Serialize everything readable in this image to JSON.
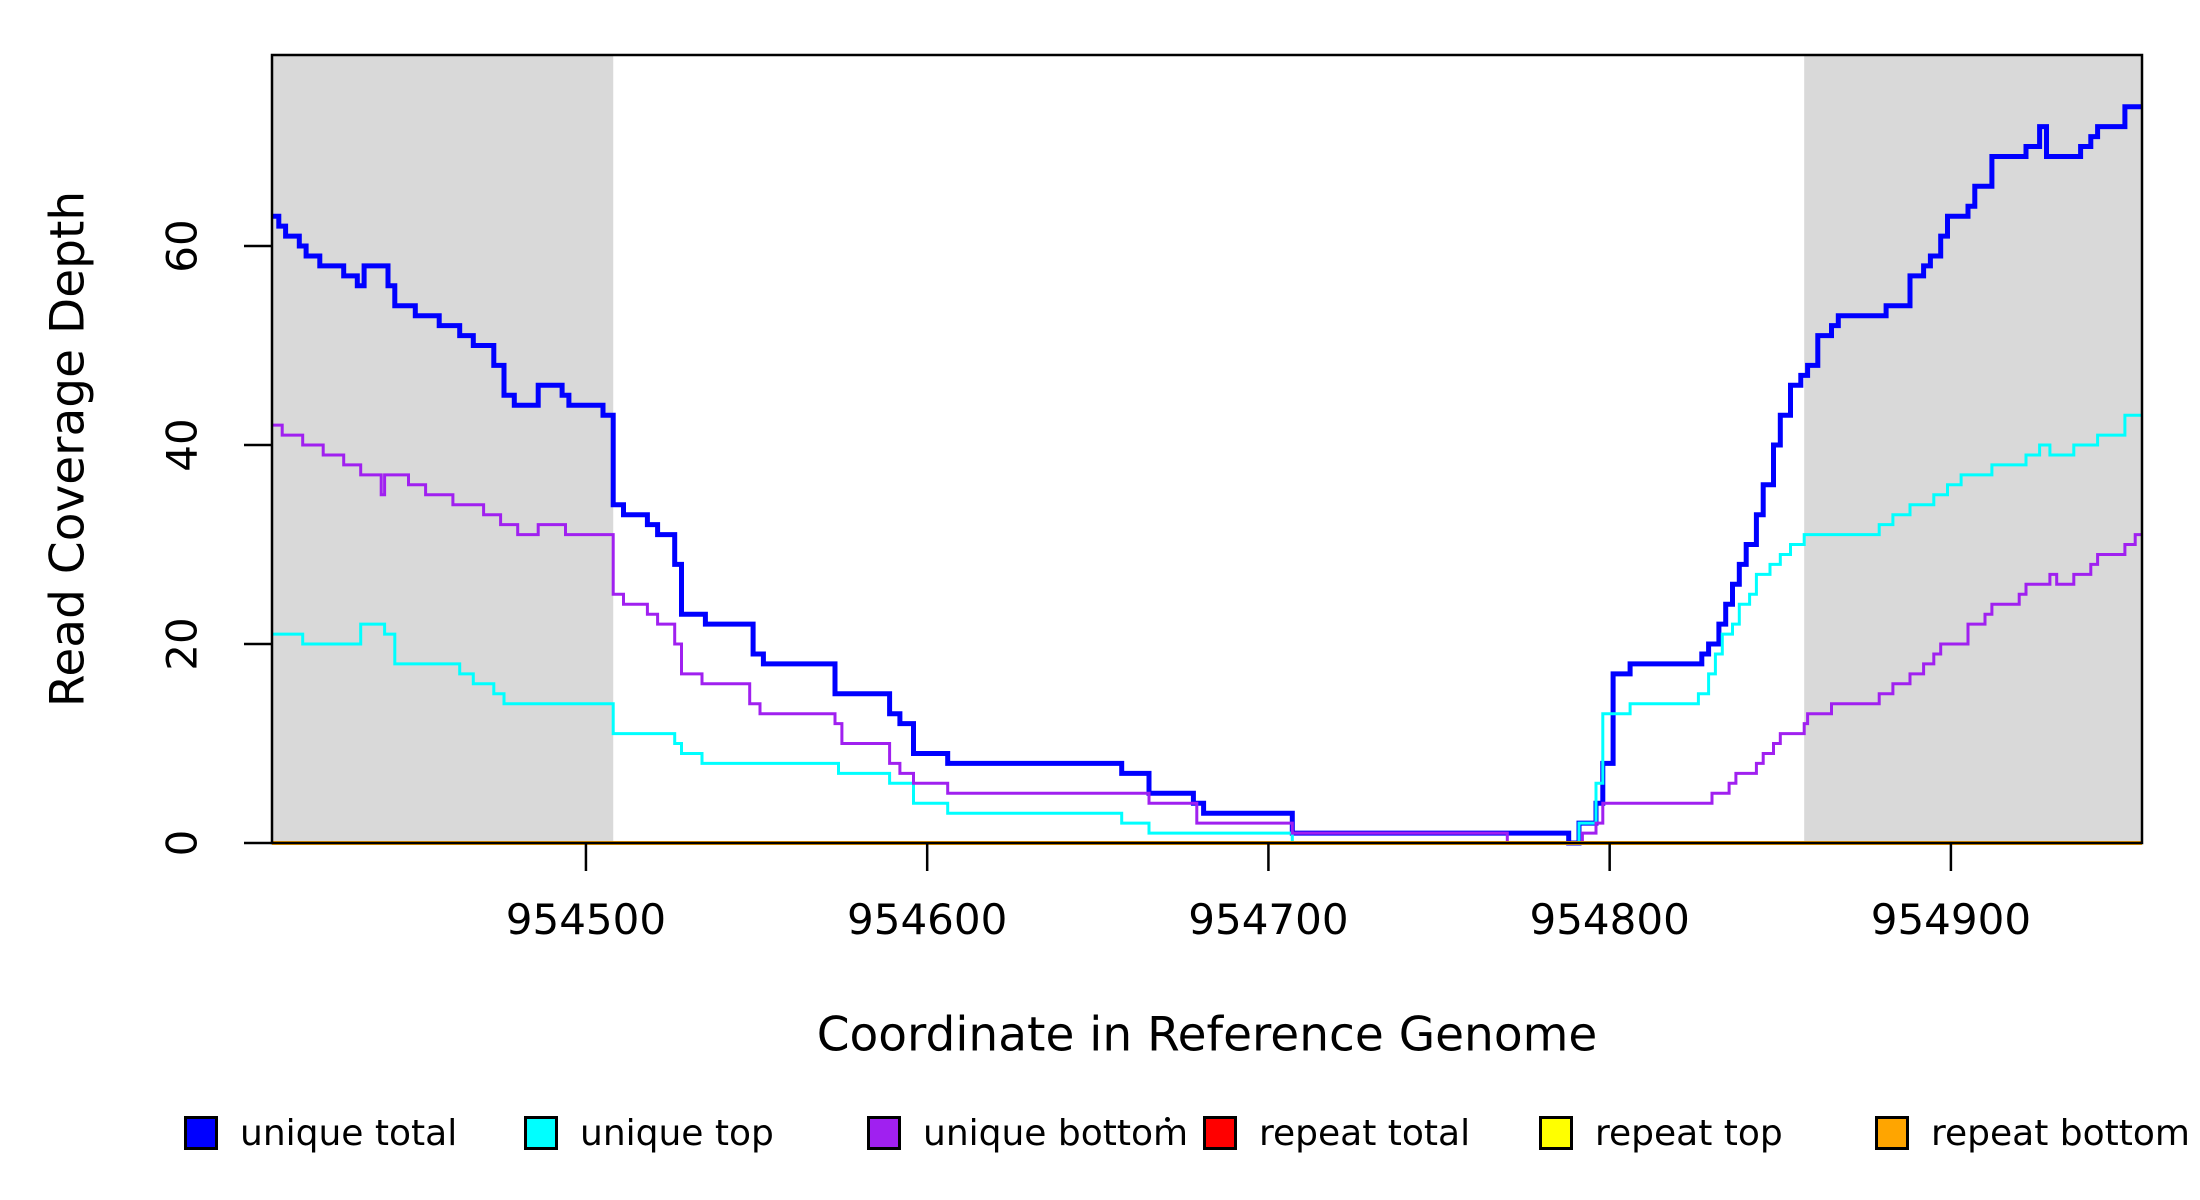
{
  "figure": {
    "y_axis_title": "Read Coverage Depth",
    "x_axis_title": "Coordinate in Reference Genome"
  },
  "chart_data": {
    "type": "line",
    "subtype": "step",
    "title": "",
    "xlabel": "Coordinate in Reference Genome",
    "ylabel": "Read Coverage Depth",
    "xlim": [
      954408,
      954956
    ],
    "ylim": [
      0,
      79.2
    ],
    "grid": false,
    "legend_position": "bottom",
    "x_ticks": [
      954500,
      954600,
      954700,
      954800,
      954900
    ],
    "y_ticks": [
      0,
      20,
      40,
      60
    ],
    "shaded_regions": [
      {
        "name": "left-flank-region",
        "x0": 954408,
        "x1": 954508,
        "color": "#D9D9D9"
      },
      {
        "name": "right-flank-region",
        "x0": 954857,
        "x1": 954956,
        "color": "#D9D9D9"
      }
    ],
    "series": [
      {
        "name": "unique total",
        "color": "#0000FF",
        "width": 5,
        "points": [
          [
            954408,
            63
          ],
          [
            954410,
            62
          ],
          [
            954412,
            61
          ],
          [
            954416,
            60
          ],
          [
            954418,
            59
          ],
          [
            954422,
            58
          ],
          [
            954429,
            57
          ],
          [
            954433,
            56
          ],
          [
            954435,
            58
          ],
          [
            954442,
            56
          ],
          [
            954444,
            54
          ],
          [
            954450,
            53
          ],
          [
            954457,
            52
          ],
          [
            954463,
            51
          ],
          [
            954467,
            50
          ],
          [
            954473,
            48
          ],
          [
            954476,
            45
          ],
          [
            954479,
            44
          ],
          [
            954486,
            46
          ],
          [
            954493,
            45
          ],
          [
            954495,
            44
          ],
          [
            954505,
            43
          ],
          [
            954508,
            34
          ],
          [
            954511,
            33
          ],
          [
            954518,
            32
          ],
          [
            954521,
            31
          ],
          [
            954526,
            28
          ],
          [
            954528,
            23
          ],
          [
            954535,
            22
          ],
          [
            954549,
            19
          ],
          [
            954552,
            18
          ],
          [
            954573,
            15
          ],
          [
            954589,
            13
          ],
          [
            954592,
            12
          ],
          [
            954596,
            9
          ],
          [
            954606,
            8
          ],
          [
            954657,
            7
          ],
          [
            954665,
            5
          ],
          [
            954678,
            4
          ],
          [
            954681,
            3
          ],
          [
            954707,
            1
          ],
          [
            954788,
            0
          ],
          [
            954791,
            2
          ],
          [
            954796,
            4
          ],
          [
            954798,
            8
          ],
          [
            954801,
            17
          ],
          [
            954806,
            18
          ],
          [
            954827,
            19
          ],
          [
            954829,
            20
          ],
          [
            954832,
            22
          ],
          [
            954834,
            24
          ],
          [
            954836,
            26
          ],
          [
            954838,
            28
          ],
          [
            954840,
            30
          ],
          [
            954843,
            33
          ],
          [
            954845,
            36
          ],
          [
            954848,
            40
          ],
          [
            954850,
            43
          ],
          [
            954853,
            46
          ],
          [
            954856,
            47
          ],
          [
            954858,
            48
          ],
          [
            954861,
            51
          ],
          [
            954865,
            52
          ],
          [
            954867,
            53
          ],
          [
            954881,
            54
          ],
          [
            954888,
            57
          ],
          [
            954892,
            58
          ],
          [
            954894,
            59
          ],
          [
            954897,
            61
          ],
          [
            954899,
            63
          ],
          [
            954905,
            64
          ],
          [
            954907,
            66
          ],
          [
            954912,
            69
          ],
          [
            954922,
            70
          ],
          [
            954926,
            72
          ],
          [
            954928,
            69
          ],
          [
            954938,
            70
          ],
          [
            954941,
            71
          ],
          [
            954943,
            72
          ],
          [
            954951,
            74
          ]
        ]
      },
      {
        "name": "unique top",
        "color": "#00FFFF",
        "width": 3,
        "points": [
          [
            954408,
            21
          ],
          [
            954417,
            20
          ],
          [
            954434,
            22
          ],
          [
            954441,
            21
          ],
          [
            954444,
            18
          ],
          [
            954463,
            17
          ],
          [
            954467,
            16
          ],
          [
            954473,
            15
          ],
          [
            954476,
            14
          ],
          [
            954508,
            11
          ],
          [
            954526,
            10
          ],
          [
            954528,
            9
          ],
          [
            954534,
            8
          ],
          [
            954574,
            7
          ],
          [
            954589,
            6
          ],
          [
            954596,
            4
          ],
          [
            954606,
            3
          ],
          [
            954657,
            2
          ],
          [
            954665,
            1
          ],
          [
            954707,
            0
          ],
          [
            954791,
            2
          ],
          [
            954796,
            6
          ],
          [
            954798,
            13
          ],
          [
            954806,
            14
          ],
          [
            954826,
            15
          ],
          [
            954829,
            17
          ],
          [
            954831,
            19
          ],
          [
            954833,
            21
          ],
          [
            954836,
            22
          ],
          [
            954838,
            24
          ],
          [
            954841,
            25
          ],
          [
            954843,
            27
          ],
          [
            954847,
            28
          ],
          [
            954850,
            29
          ],
          [
            954853,
            30
          ],
          [
            954857,
            31
          ],
          [
            954879,
            32
          ],
          [
            954883,
            33
          ],
          [
            954888,
            34
          ],
          [
            954895,
            35
          ],
          [
            954899,
            36
          ],
          [
            954903,
            37
          ],
          [
            954912,
            38
          ],
          [
            954922,
            39
          ],
          [
            954926,
            40
          ],
          [
            954929,
            39
          ],
          [
            954936,
            40
          ],
          [
            954943,
            41
          ],
          [
            954951,
            43
          ]
        ]
      },
      {
        "name": "unique bottom",
        "color": "#A020F0",
        "width": 3,
        "points": [
          [
            954408,
            42
          ],
          [
            954411,
            41
          ],
          [
            954417,
            40
          ],
          [
            954423,
            39
          ],
          [
            954429,
            38
          ],
          [
            954434,
            37
          ],
          [
            954440,
            35
          ],
          [
            954441,
            37
          ],
          [
            954448,
            36
          ],
          [
            954453,
            35
          ],
          [
            954461,
            34
          ],
          [
            954470,
            33
          ],
          [
            954475,
            32
          ],
          [
            954480,
            31
          ],
          [
            954486,
            32
          ],
          [
            954494,
            31
          ],
          [
            954508,
            25
          ],
          [
            954511,
            24
          ],
          [
            954518,
            23
          ],
          [
            954521,
            22
          ],
          [
            954526,
            20
          ],
          [
            954528,
            17
          ],
          [
            954534,
            16
          ],
          [
            954548,
            14
          ],
          [
            954551,
            13
          ],
          [
            954573,
            12
          ],
          [
            954575,
            10
          ],
          [
            954589,
            8
          ],
          [
            954592,
            7
          ],
          [
            954596,
            6
          ],
          [
            954606,
            5
          ],
          [
            954665,
            4
          ],
          [
            954679,
            2
          ],
          [
            954707,
            1
          ],
          [
            954770,
            0
          ],
          [
            954792,
            1
          ],
          [
            954796,
            2
          ],
          [
            954798,
            4
          ],
          [
            954830,
            5
          ],
          [
            954835,
            6
          ],
          [
            954837,
            7
          ],
          [
            954843,
            8
          ],
          [
            954845,
            9
          ],
          [
            954848,
            10
          ],
          [
            954850,
            11
          ],
          [
            954857,
            12
          ],
          [
            954858,
            13
          ],
          [
            954865,
            14
          ],
          [
            954879,
            15
          ],
          [
            954883,
            16
          ],
          [
            954888,
            17
          ],
          [
            954892,
            18
          ],
          [
            954895,
            19
          ],
          [
            954897,
            20
          ],
          [
            954905,
            22
          ],
          [
            954910,
            23
          ],
          [
            954912,
            24
          ],
          [
            954920,
            25
          ],
          [
            954922,
            26
          ],
          [
            954929,
            27
          ],
          [
            954931,
            26
          ],
          [
            954936,
            27
          ],
          [
            954941,
            28
          ],
          [
            954943,
            29
          ],
          [
            954951,
            30
          ],
          [
            954954,
            31
          ]
        ]
      },
      {
        "name": "repeat total",
        "color": "#FF0000",
        "width": 3,
        "points": [
          [
            954408,
            0
          ]
        ]
      },
      {
        "name": "repeat top",
        "color": "#FFFF00",
        "width": 3,
        "points": [
          [
            954408,
            0
          ]
        ]
      },
      {
        "name": "repeat bottom",
        "color": "#FFA500",
        "width": 4,
        "points": [
          [
            954408,
            0
          ]
        ]
      }
    ],
    "legend": [
      {
        "label": "unique total",
        "color": "#0000FF"
      },
      {
        "label": "unique top",
        "color": "#00FFFF"
      },
      {
        "label": "unique bottom",
        "color": "#A020F0"
      },
      {
        "label": "repeat total",
        "color": "#FF0000"
      },
      {
        "label": "repeat top",
        "color": "#FFFF00"
      },
      {
        "label": "repeat bottom",
        "color": "#FFA500"
      }
    ]
  },
  "decorations": {
    "stray_dot": true
  }
}
